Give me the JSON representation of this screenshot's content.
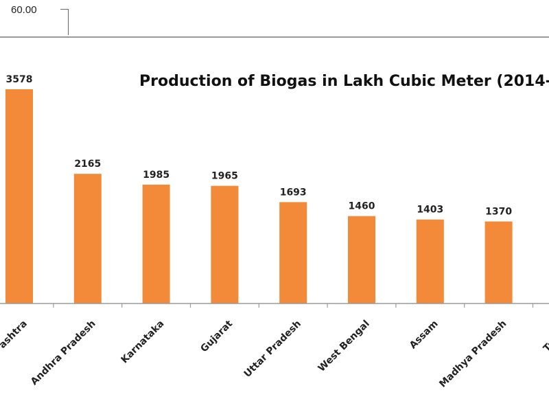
{
  "header": {
    "value": "60.00"
  },
  "colors": {
    "bar": "#F28A39",
    "axis": "#9a9a9a",
    "text": "#222222"
  },
  "chart_data": {
    "type": "bar",
    "title": "Production of Biogas in Lakh Cubic Meter (2014-",
    "categories": [
      "Maharashtra",
      "Andhra Pradesh",
      "Karnataka",
      "Gujarat",
      "Uttar Pradesh",
      "West Bengal",
      "Assam",
      "Madhya Pradesh",
      "Tamil Nadu"
    ],
    "category_labels": [
      "ashtra",
      "Andhra Pradesh",
      "Karnataka",
      "Gujarat",
      "Uttar Pradesh",
      "West Bengal",
      "Assam",
      "Madhya Pradesh",
      "Tamil N"
    ],
    "values": [
      3578,
      2165,
      1985,
      1965,
      1693,
      1460,
      1403,
      1370,
      null
    ],
    "value_labels": [
      "3578",
      "2165",
      "1985",
      "1965",
      "1693",
      "1460",
      "1403",
      "1370",
      ""
    ],
    "ylim": [
      0,
      3578
    ],
    "grid": false,
    "legend": "none"
  }
}
